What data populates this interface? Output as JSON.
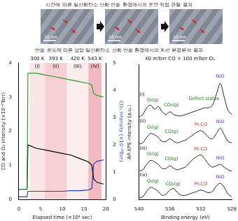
{
  "header": {
    "top_title": "시간에 따른 일산화탄소 산화 반응 환경에서의 표면 직접 관찰 결과",
    "bottom_title": "반응 온도에 따른 상압 일산화탄소 산화 반응 환경에서의 X-선 분광분석 결과"
  },
  "images": [
    {
      "scale_label": "10 nm"
    },
    {
      "scale_label": "10 nm"
    },
    {
      "scale_label": "10 nm"
    }
  ],
  "chart_data": [
    {
      "type": "line",
      "x": [
        0,
        1.9,
        2.1,
        4,
        6,
        8,
        10,
        12,
        14,
        16,
        16.8,
        17.2,
        18,
        19.5
      ],
      "series": [
        {
          "color": "#2e9e2e",
          "values": [
            0.3,
            0.3,
            3.7,
            3.7,
            3.65,
            3.6,
            3.55,
            3.5,
            3.45,
            3.4,
            3.35,
            3.1,
            3.05,
            3.0
          ]
        },
        {
          "color": "#000000",
          "values": [
            0.3,
            0.3,
            1.6,
            1.5,
            1.45,
            1.4,
            1.35,
            1.3,
            1.2,
            1.1,
            1.0,
            0.6,
            0.5,
            0.45
          ]
        },
        {
          "color": "#1f3fd0",
          "axis": "y2",
          "values": [
            0.1,
            0.1,
            0.3,
            0.3,
            0.3,
            0.3,
            0.3,
            0.32,
            0.32,
            0.35,
            0.4,
            1.3,
            1.4,
            1.45
          ]
        }
      ],
      "xlabel": "Elapsed time (×10³ sec)",
      "ylabel": "CO and O₂ Intensity (×10⁻⁶Torr)",
      "y2label": "CO₂ intensity (×10⁻⁸Torr)",
      "xlim": [
        0,
        20
      ],
      "xticks": [
        0,
        5,
        10,
        15,
        20
      ],
      "ylim": [
        0,
        4
      ],
      "yticks": [
        0,
        1,
        2,
        3,
        4
      ],
      "y2lim": [
        0,
        5
      ],
      "y2ticks": [
        0,
        1,
        2,
        3,
        4,
        5
      ],
      "grid": false,
      "regions": [
        {
          "label": "(I)",
          "temperature": "300 K",
          "start": 2.5,
          "end": 6
        },
        {
          "label": "(II)",
          "temperature": "393 K",
          "start": 6,
          "end": 11
        },
        {
          "label": "(III)",
          "temperature": "420 K",
          "start": 11,
          "end": 16
        },
        {
          "label": "(IV)",
          "temperature": "543 K",
          "start": 16,
          "end": 19
        }
      ]
    },
    {
      "type": "line",
      "title": "40 mTorr CO + 100 mTorr O₂",
      "x": [
        540,
        539.5,
        539,
        538.5,
        538,
        537.5,
        537,
        536.5,
        536,
        535.5,
        535,
        534.5,
        534,
        533.5,
        533,
        532.5,
        532,
        531.5,
        531,
        530.5,
        530,
        529.5,
        529,
        528.5,
        528
      ],
      "series": [
        {
          "color": "#222222",
          "values": [
            6.1,
            6.3,
            6.8,
            7.0,
            6.7,
            6.9,
            6.5,
            6.3,
            6.5,
            6.3,
            6.2,
            6.2,
            6.3,
            6.4,
            6.5,
            6.6,
            6.7,
            6.8,
            6.8,
            7.0,
            7.8,
            8.6,
            7.6,
            6.6,
            6.3
          ]
        },
        {
          "color": "#222222",
          "values": [
            4.1,
            4.2,
            4.6,
            4.9,
            4.8,
            4.6,
            4.3,
            4.3,
            4.5,
            4.3,
            4.2,
            4.3,
            4.4,
            4.6,
            4.8,
            5.0,
            5.1,
            4.9,
            4.6,
            4.5,
            4.9,
            5.3,
            4.8,
            4.3,
            4.2
          ]
        },
        {
          "color": "#222222",
          "values": [
            2.1,
            2.2,
            2.6,
            2.9,
            2.8,
            2.6,
            2.3,
            2.3,
            2.5,
            2.3,
            2.2,
            2.3,
            2.4,
            2.7,
            3.0,
            3.2,
            3.3,
            3.0,
            2.6,
            2.4,
            2.5,
            2.6,
            2.4,
            2.2,
            2.1
          ]
        },
        {
          "color": "#222222",
          "values": [
            0.1,
            0.2,
            0.6,
            0.9,
            0.8,
            0.6,
            0.3,
            0.4,
            0.7,
            0.8,
            0.5,
            0.3,
            0.3,
            0.4,
            0.5,
            0.6,
            0.7,
            0.6,
            0.5,
            0.6,
            1.0,
            1.2,
            0.9,
            0.4,
            0.2
          ]
        }
      ],
      "xlabel": "Binding energy (eV)",
      "ylabel": "AP-XPS intensity (a.u.)",
      "xlim": [
        540,
        528
      ],
      "xticks": [
        540,
        536,
        532,
        528
      ],
      "ylim": [
        0,
        10
      ],
      "tick_labels": "x",
      "grid": false,
      "annotations": [
        {
          "text": "(i)",
          "x": 539.9,
          "y": 7.8
        },
        {
          "text": "O₂(g)",
          "x": 538.2,
          "y": 7.35
        },
        {
          "text": "CO₂(g)",
          "x": 535.8,
          "y": 7.0
        },
        {
          "text": "Defect states",
          "x": 531.6,
          "y": 7.45
        },
        {
          "text": "NiO",
          "x": 529.5,
          "y": 9.1
        },
        {
          "text": "(ii)",
          "x": 539.9,
          "y": 5.8
        },
        {
          "text": "O₂(g)",
          "x": 538.2,
          "y": 5.35
        },
        {
          "text": "CO(g)",
          "x": 535.8,
          "y": 5.0
        },
        {
          "text": "Pt-CO",
          "x": 532,
          "y": 5.55
        },
        {
          "text": "NiO",
          "x": 529.5,
          "y": 5.75
        },
        {
          "text": "(iii)",
          "x": 539.9,
          "y": 3.8
        },
        {
          "text": "O₂(g)",
          "x": 538.2,
          "y": 3.35
        },
        {
          "text": "CO(g)",
          "x": 535.8,
          "y": 3.0
        },
        {
          "text": "Pt-CO",
          "x": 532,
          "y": 3.75
        },
        {
          "text": "NiO",
          "x": 529.5,
          "y": 3.05
        },
        {
          "text": "(iv)",
          "x": 539.9,
          "y": 1.8
        },
        {
          "text": "O₂(g)",
          "x": 538.2,
          "y": 1.35
        },
        {
          "text": "CO₂(g)",
          "x": 535.6,
          "y": 1.15
        },
        {
          "text": "Pt-CO",
          "x": 532,
          "y": 1.15
        },
        {
          "text": "NiO",
          "x": 529.5,
          "y": 1.65
        }
      ]
    }
  ]
}
